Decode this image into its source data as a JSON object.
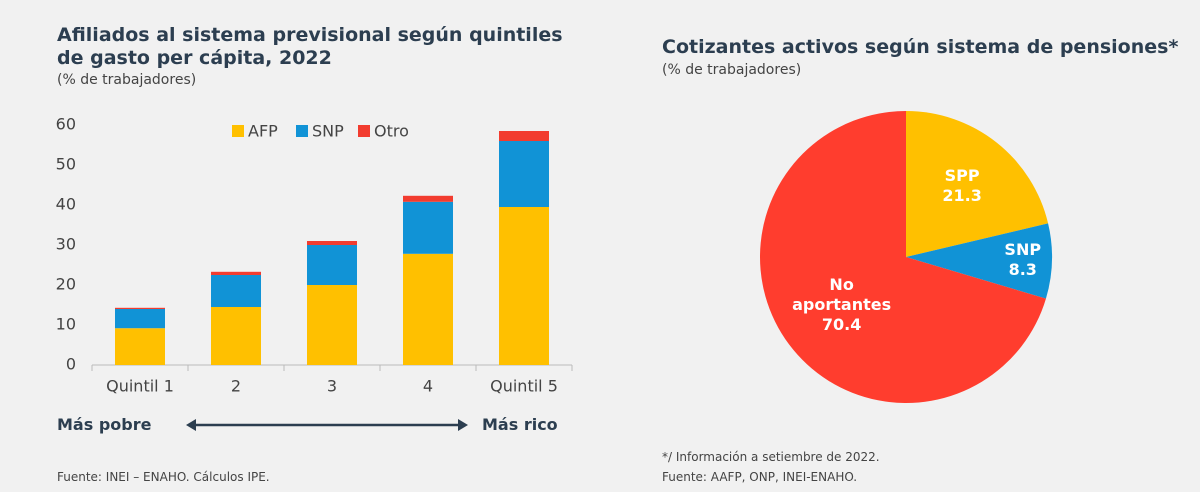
{
  "chart_data": [
    {
      "type": "bar",
      "stacked": true,
      "title": "Afiliados al sistema previsional según quintiles de gasto per cápita, 2022",
      "subtitle": "(% de trabajadores)",
      "categories": [
        "Quintil 1",
        "2",
        "3",
        "4",
        "Quintil 5"
      ],
      "series": [
        {
          "name": "AFP",
          "color": "#ffc000",
          "values": [
            9.2,
            14.5,
            20,
            27.8,
            39.5
          ]
        },
        {
          "name": "SNP",
          "color": "#1193d6",
          "values": [
            4.8,
            8.0,
            10,
            13.0,
            16.5
          ]
        },
        {
          "name": "Otro",
          "color": "#f23c2f",
          "values": [
            0.3,
            0.8,
            1.0,
            1.5,
            2.5
          ]
        }
      ],
      "ylim": [
        0,
        60
      ],
      "yticks": [
        0,
        10,
        20,
        30,
        40,
        50,
        60
      ],
      "legend": "top",
      "annotations": [
        "Más pobre",
        "Más rico"
      ],
      "source": "Fuente: INEI – ENAHO. Cálculos IPE."
    },
    {
      "type": "pie",
      "title": "Cotizantes activos según sistema de pensiones*",
      "subtitle": "(% de trabajadores)",
      "categories": [
        "SPP",
        "SNP",
        "No aportantes"
      ],
      "values": [
        21.3,
        8.3,
        70.4
      ],
      "colors": [
        "#ffc000",
        "#1193d6",
        "#ff3d2e"
      ],
      "note": "*/ Información a setiembre de 2022.",
      "source": "Fuente: AAFP, ONP, INEI-ENAHO."
    }
  ]
}
